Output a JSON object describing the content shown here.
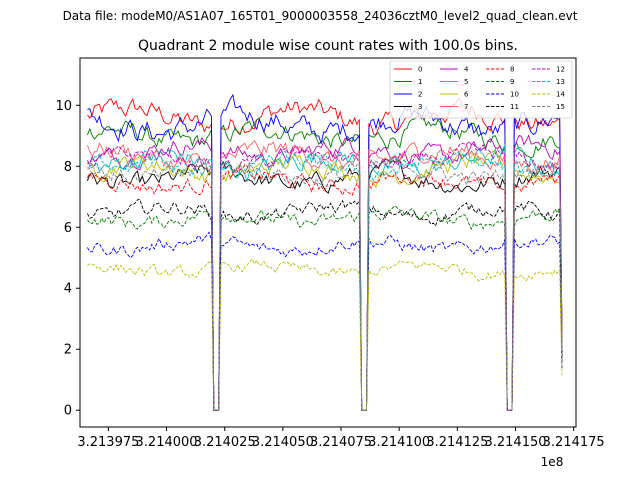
{
  "suptitle": "Data file: modeM0/AS1A07_165T01_9000003558_24036cztM0_level2_quad_clean.evt",
  "chart_data": {
    "type": "line",
    "title": "Quadrant 2 module wise count rates with 100.0s bins.",
    "xlabel": "",
    "ylabel": "",
    "x_offset_label": "1e8",
    "xlim": [
      3.2139628,
      3.214176
    ],
    "ylim": [
      -0.55,
      11.55
    ],
    "x_tick_values": [
      3.213975,
      3.214,
      3.214025,
      3.21405,
      3.214075,
      3.2141,
      3.214125,
      3.21415,
      3.214175
    ],
    "x_tick_labels": [
      "3.213975",
      "3.214000",
      "3.214025",
      "3.214050",
      "3.214075",
      "3.214100",
      "3.214125",
      "3.214150",
      "3.214175"
    ],
    "y_ticks": [
      0,
      2,
      4,
      6,
      8,
      10
    ],
    "x_start": 3.213966,
    "x_end": 3.21417,
    "gaps": [
      [
        3.2140195,
        3.2140225
      ],
      [
        3.2140835,
        3.2140865
      ],
      [
        3.214146,
        3.214149
      ]
    ],
    "n_points": 200,
    "legend": {
      "location": "upper right",
      "columns": 4
    },
    "series": [
      {
        "name": "0",
        "color": "#ff0000",
        "dash": "solid",
        "level": 9.6,
        "amp": 0.55
      },
      {
        "name": "1",
        "color": "#008000",
        "dash": "solid",
        "level": 9.0,
        "amp": 0.5
      },
      {
        "name": "2",
        "color": "#0000ff",
        "dash": "solid",
        "level": 9.4,
        "amp": 0.6
      },
      {
        "name": "3",
        "color": "#000000",
        "dash": "solid",
        "level": 7.6,
        "amp": 0.45
      },
      {
        "name": "4",
        "color": "#bf00bf",
        "dash": "solid",
        "level": 8.5,
        "amp": 0.45
      },
      {
        "name": "5",
        "color": "#00bfbf",
        "dash": "solid",
        "level": 8.1,
        "amp": 0.5
      },
      {
        "name": "6",
        "color": "#bfbf00",
        "dash": "solid",
        "level": 7.9,
        "amp": 0.45
      },
      {
        "name": "7",
        "color": "#ff6060",
        "dash": "solid",
        "level": 8.3,
        "amp": 0.5
      },
      {
        "name": "8",
        "color": "#ff0000",
        "dash": "dashed",
        "level": 7.5,
        "amp": 0.4
      },
      {
        "name": "9",
        "color": "#008000",
        "dash": "dashed",
        "level": 6.3,
        "amp": 0.35
      },
      {
        "name": "10",
        "color": "#0000ff",
        "dash": "dashed",
        "level": 5.4,
        "amp": 0.35
      },
      {
        "name": "11",
        "color": "#000000",
        "dash": "dashed",
        "level": 6.5,
        "amp": 0.35
      },
      {
        "name": "12",
        "color": "#bf00bf",
        "dash": "dashed",
        "level": 8.2,
        "amp": 0.4
      },
      {
        "name": "13",
        "color": "#00bfbf",
        "dash": "dashed",
        "level": 8.0,
        "amp": 0.4
      },
      {
        "name": "14",
        "color": "#bfbf00",
        "dash": "dashed",
        "level": 4.6,
        "amp": 0.3
      },
      {
        "name": "15",
        "color": "#808080",
        "dash": "dashed",
        "level": 7.8,
        "amp": 0.4
      }
    ]
  }
}
